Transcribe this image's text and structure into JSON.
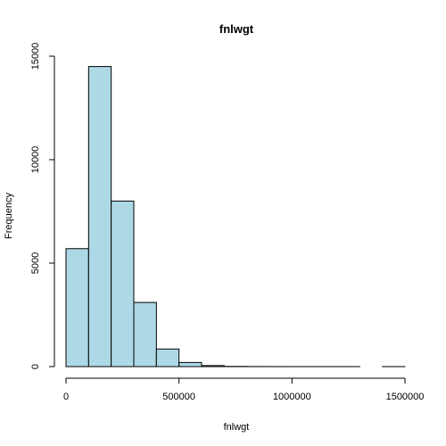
{
  "chart_data": {
    "type": "histogram",
    "title": "fnlwgt",
    "xlabel": "fnlwgt",
    "ylabel": "Frequency",
    "xlim": [
      0,
      1500000
    ],
    "ylim": [
      0,
      15000
    ],
    "x_ticks": [
      0,
      500000,
      1000000,
      1500000
    ],
    "x_tick_labels": [
      "0",
      "500000",
      "1000000",
      "1500000"
    ],
    "y_ticks": [
      0,
      5000,
      10000,
      15000
    ],
    "y_tick_labels": [
      "0",
      "5000",
      "10000",
      "15000"
    ],
    "bins": [
      {
        "start": 0,
        "end": 100000,
        "count": 5700
      },
      {
        "start": 100000,
        "end": 200000,
        "count": 14500
      },
      {
        "start": 200000,
        "end": 300000,
        "count": 8000
      },
      {
        "start": 300000,
        "end": 400000,
        "count": 3100
      },
      {
        "start": 400000,
        "end": 500000,
        "count": 850
      },
      {
        "start": 500000,
        "end": 600000,
        "count": 200
      },
      {
        "start": 600000,
        "end": 700000,
        "count": 50
      },
      {
        "start": 700000,
        "end": 800000,
        "count": 10
      },
      {
        "start": 800000,
        "end": 900000,
        "count": 4
      },
      {
        "start": 900000,
        "end": 1000000,
        "count": 2
      },
      {
        "start": 1000000,
        "end": 1100000,
        "count": 1
      },
      {
        "start": 1100000,
        "end": 1200000,
        "count": 1
      },
      {
        "start": 1200000,
        "end": 1300000,
        "count": 1
      },
      {
        "start": 1300000,
        "end": 1400000,
        "count": 0
      },
      {
        "start": 1400000,
        "end": 1500000,
        "count": 1
      }
    ],
    "bar_fill": "#add8e6",
    "bar_stroke": "#000000",
    "grid": false,
    "legend": "none"
  }
}
